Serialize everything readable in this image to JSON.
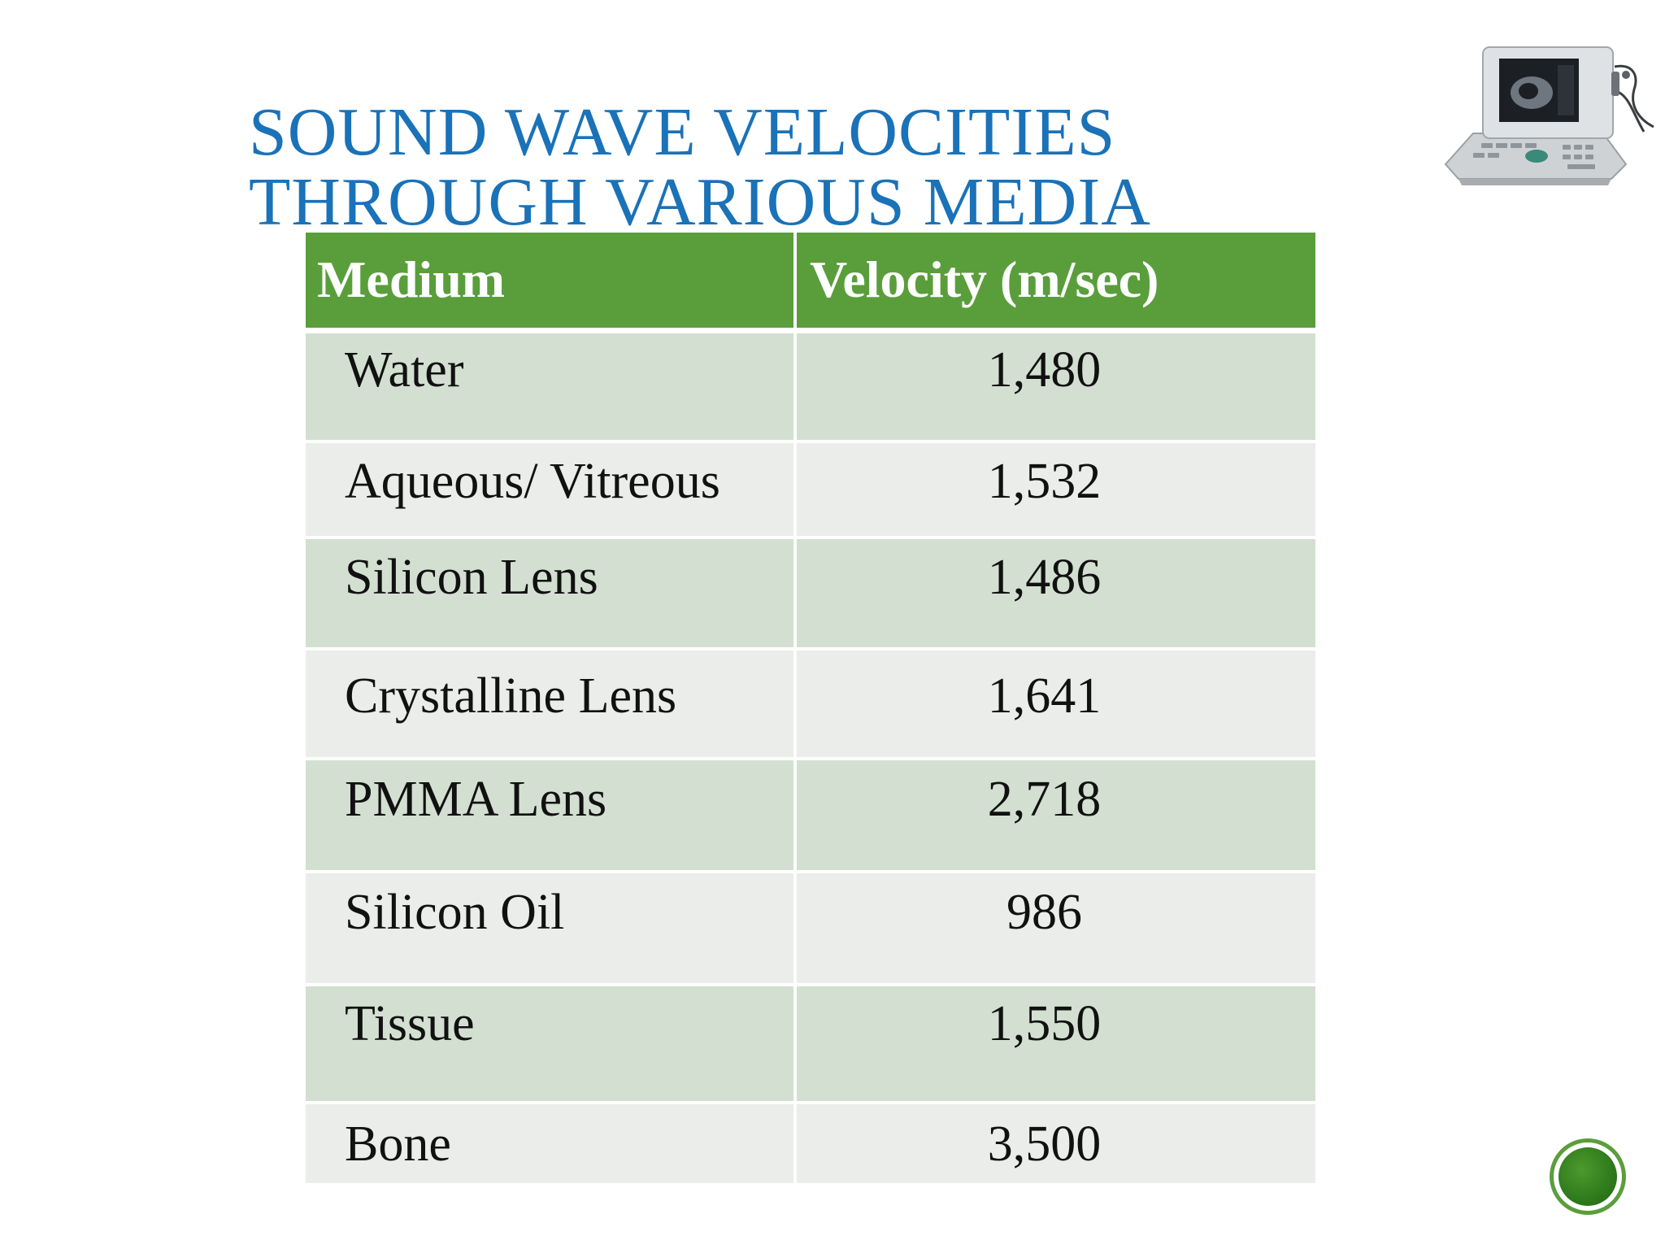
{
  "slide": {
    "title_line1": "SOUND WAVE VELOCITIES",
    "title_line2": "THROUGH VARIOUS MEDIA",
    "image_icon": "ultrasound-machine-icon",
    "nav_icon": "green-circle-icon"
  },
  "colors": {
    "title": "#1a72b8",
    "header_bg": "#5a9e3c",
    "row_odd": "#d3e0d1",
    "row_even": "#eaedea"
  },
  "table": {
    "headers": {
      "medium": "Medium",
      "velocity": "Velocity (m/sec)"
    },
    "rows": [
      {
        "medium": "Water",
        "velocity": "1,480"
      },
      {
        "medium": "Aqueous/ Vitreous",
        "velocity": "1,532"
      },
      {
        "medium": "Silicon Lens",
        "velocity": "1,486"
      },
      {
        "medium": "Crystalline Lens",
        "velocity": "1,641"
      },
      {
        "medium": "PMMA Lens",
        "velocity": "2,718"
      },
      {
        "medium": "Silicon Oil",
        "velocity": "986"
      },
      {
        "medium": "Tissue",
        "velocity": "1,550"
      },
      {
        "medium": "Bone",
        "velocity": "3,500"
      }
    ]
  }
}
